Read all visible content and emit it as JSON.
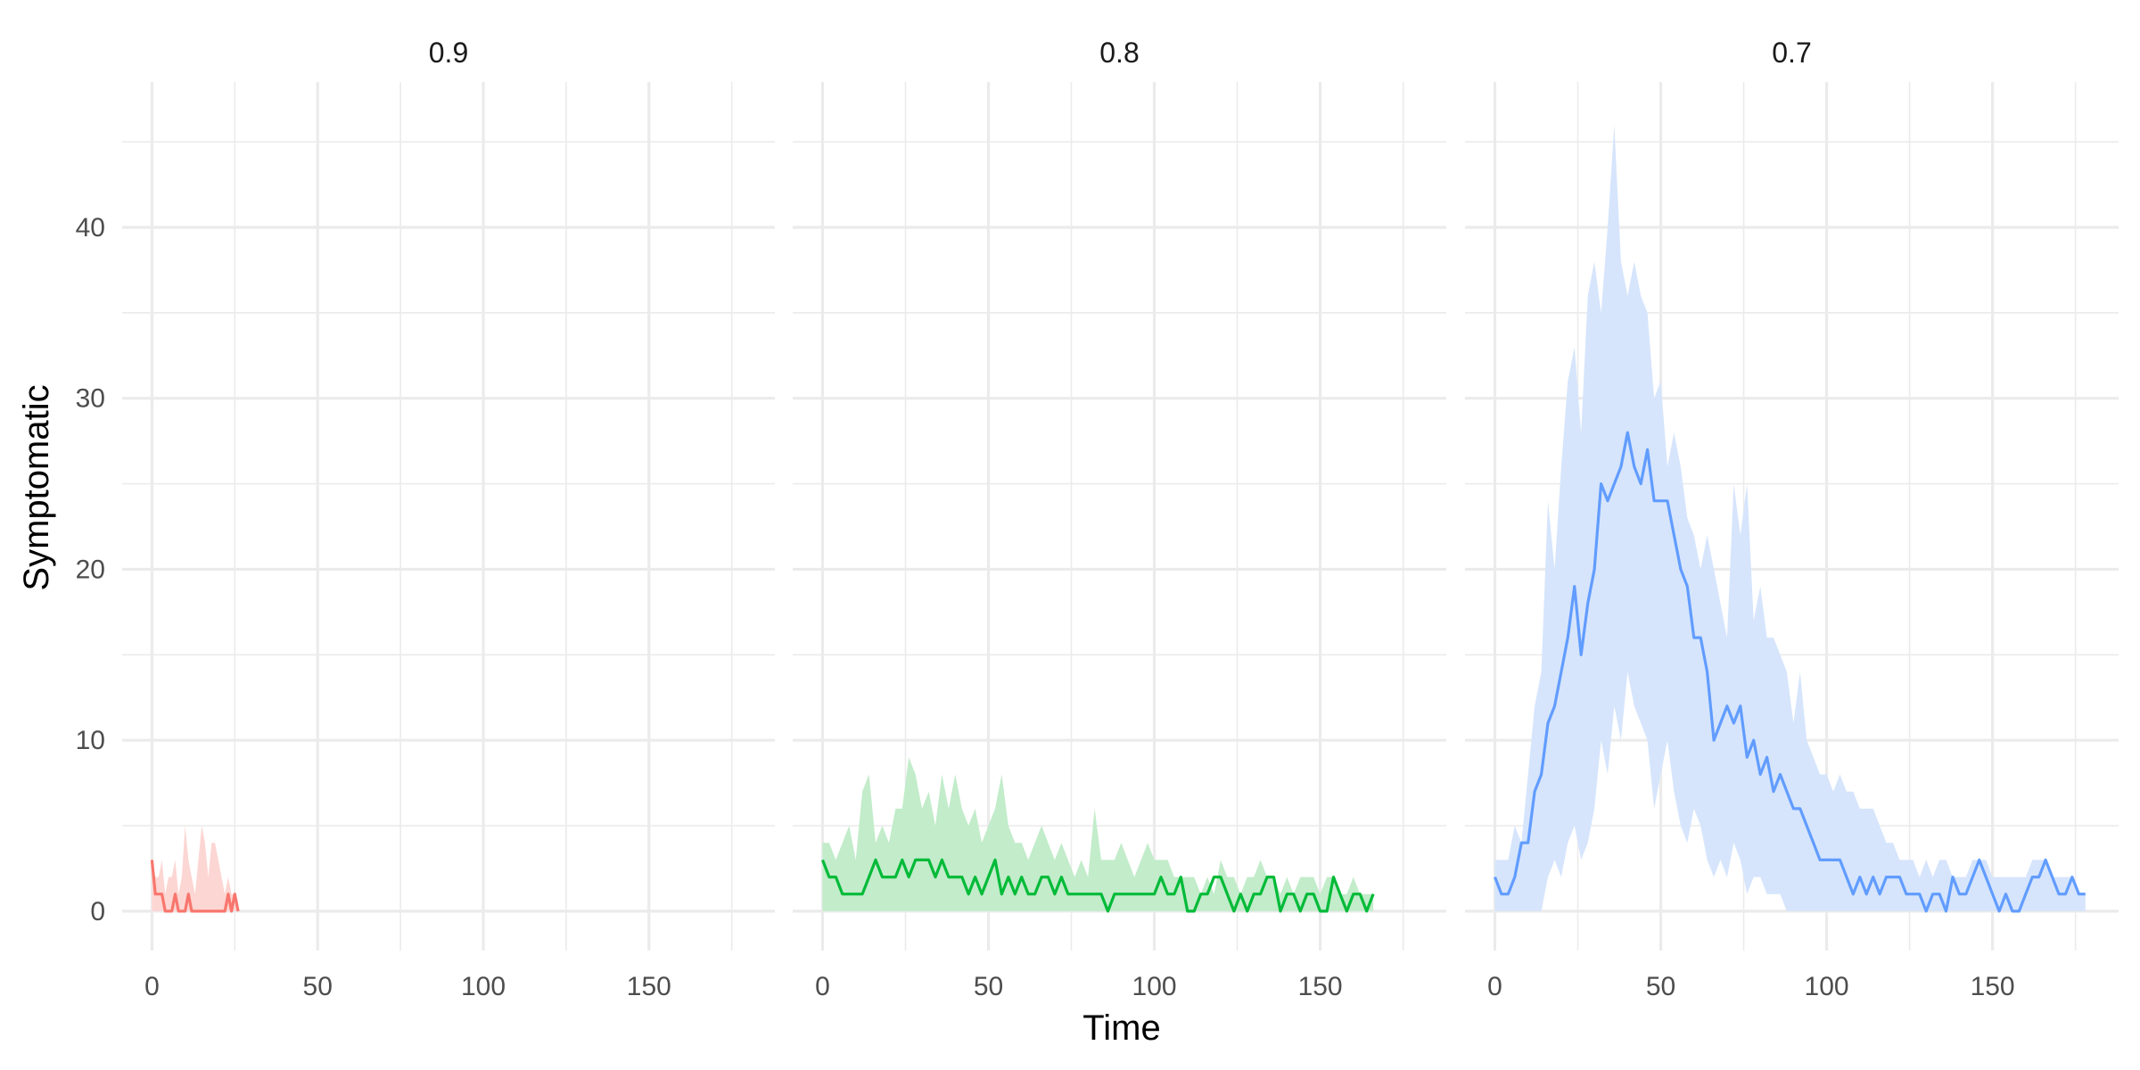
{
  "chart_data": {
    "type": "line",
    "xlabel": "Time",
    "ylabel": "Symptomatic",
    "xlim": [
      -9,
      188
    ],
    "ylim": [
      -2.3,
      48.5
    ],
    "x_ticks": [
      0,
      50,
      100,
      150
    ],
    "x_ticks_minor": [
      25,
      75,
      125,
      175
    ],
    "y_ticks": [
      0,
      10,
      20,
      30,
      40
    ],
    "y_ticks_minor": [
      5,
      15,
      25,
      35,
      45
    ],
    "grid": true,
    "legend": "none",
    "panels": [
      {
        "name": "0.9",
        "tick_labels": [
          "0",
          "50",
          "100",
          "150"
        ],
        "color": "#f8766d",
        "band_color": "#fcd6d3",
        "x": [
          0,
          1,
          2,
          3,
          4,
          5,
          6,
          7,
          8,
          9,
          10,
          11,
          12,
          13,
          14,
          15,
          16,
          17,
          18,
          19,
          20,
          21,
          22,
          23,
          24,
          25,
          26
        ],
        "median": [
          3,
          1,
          1,
          1,
          0,
          0,
          0,
          1,
          0,
          0,
          0,
          1,
          0,
          0,
          0,
          0,
          0,
          0,
          0,
          0,
          0,
          0,
          0,
          1,
          0,
          1,
          0
        ],
        "lower": [
          0,
          0,
          0,
          0,
          0,
          0,
          0,
          0,
          0,
          0,
          0,
          0,
          0,
          0,
          0,
          0,
          0,
          0,
          0,
          0,
          0,
          0,
          0,
          0,
          0,
          0,
          0
        ],
        "upper": [
          3,
          2,
          2,
          3,
          1,
          2,
          2,
          3,
          1,
          2,
          5,
          3,
          2,
          1,
          3,
          5,
          4,
          2,
          4,
          4,
          3,
          2,
          1,
          2,
          1,
          1,
          0
        ]
      },
      {
        "name": "0.8",
        "tick_labels": [
          "0",
          "50",
          "100",
          "150"
        ],
        "color": "#00ba38",
        "band_color": "#c2ecca",
        "x": [
          0,
          2,
          4,
          6,
          8,
          10,
          12,
          14,
          16,
          18,
          20,
          22,
          24,
          26,
          28,
          30,
          32,
          34,
          36,
          38,
          40,
          42,
          44,
          46,
          48,
          50,
          52,
          54,
          56,
          58,
          60,
          62,
          64,
          66,
          68,
          70,
          72,
          74,
          76,
          78,
          80,
          82,
          84,
          86,
          88,
          90,
          92,
          94,
          96,
          98,
          100,
          102,
          104,
          106,
          108,
          110,
          112,
          114,
          116,
          118,
          120,
          122,
          124,
          126,
          128,
          130,
          132,
          134,
          136,
          138,
          140,
          142,
          144,
          146,
          148,
          150,
          152,
          154,
          156,
          158,
          160,
          162,
          164,
          166
        ],
        "median": [
          3,
          2,
          2,
          1,
          1,
          1,
          1,
          2,
          3,
          2,
          2,
          2,
          3,
          2,
          3,
          3,
          3,
          2,
          3,
          2,
          2,
          2,
          1,
          2,
          1,
          2,
          3,
          1,
          2,
          1,
          2,
          1,
          1,
          2,
          2,
          1,
          2,
          1,
          1,
          1,
          1,
          1,
          1,
          0,
          1,
          1,
          1,
          1,
          1,
          1,
          1,
          2,
          1,
          1,
          2,
          0,
          0,
          1,
          1,
          2,
          2,
          1,
          0,
          1,
          0,
          1,
          1,
          2,
          2,
          0,
          1,
          1,
          0,
          1,
          1,
          0,
          0,
          2,
          1,
          0,
          1,
          1,
          0,
          1
        ],
        "lower": [
          0,
          0,
          0,
          0,
          0,
          0,
          0,
          0,
          0,
          0,
          0,
          0,
          0,
          0,
          0,
          0,
          0,
          0,
          0,
          0,
          0,
          0,
          0,
          0,
          0,
          0,
          0,
          0,
          0,
          0,
          0,
          0,
          0,
          0,
          0,
          0,
          0,
          0,
          0,
          0,
          0,
          0,
          0,
          0,
          0,
          0,
          0,
          0,
          0,
          0,
          0,
          0,
          0,
          0,
          0,
          0,
          0,
          0,
          0,
          0,
          0,
          0,
          0,
          0,
          0,
          0,
          0,
          0,
          0,
          0,
          0,
          0,
          0,
          0,
          0,
          0,
          0,
          0,
          0,
          0,
          0,
          0,
          0,
          0
        ],
        "upper": [
          4,
          4,
          3,
          4,
          5,
          3,
          7,
          8,
          4,
          5,
          4,
          6,
          6,
          9,
          8,
          6,
          7,
          5,
          8,
          6,
          8,
          6,
          5,
          6,
          4,
          5,
          6,
          8,
          5,
          4,
          4,
          3,
          4,
          5,
          4,
          3,
          4,
          3,
          2,
          3,
          2,
          6,
          3,
          3,
          3,
          4,
          3,
          2,
          3,
          4,
          3,
          3,
          3,
          2,
          2,
          2,
          2,
          1,
          2,
          1,
          3,
          2,
          2,
          1,
          2,
          2,
          3,
          2,
          2,
          1,
          2,
          1,
          2,
          2,
          2,
          1,
          2,
          2,
          1,
          1,
          2,
          1,
          1,
          1
        ]
      },
      {
        "name": "0.7",
        "tick_labels": [
          "0",
          "50",
          "100",
          "150"
        ],
        "color": "#619cff",
        "band_color": "#d6e5fc",
        "x": [
          0,
          2,
          4,
          6,
          8,
          10,
          12,
          14,
          16,
          18,
          20,
          22,
          24,
          26,
          28,
          30,
          32,
          34,
          36,
          38,
          40,
          42,
          44,
          46,
          48,
          50,
          52,
          54,
          56,
          58,
          60,
          62,
          64,
          66,
          68,
          70,
          72,
          74,
          76,
          78,
          80,
          82,
          84,
          86,
          88,
          90,
          92,
          94,
          96,
          98,
          100,
          102,
          104,
          106,
          108,
          110,
          112,
          114,
          116,
          118,
          120,
          122,
          124,
          126,
          128,
          130,
          132,
          134,
          136,
          138,
          140,
          142,
          144,
          146,
          148,
          150,
          152,
          154,
          156,
          158,
          160,
          162,
          164,
          166,
          168,
          170,
          172,
          174,
          176,
          178
        ],
        "median": [
          2,
          1,
          1,
          2,
          4,
          4,
          7,
          8,
          11,
          12,
          14,
          16,
          19,
          15,
          18,
          20,
          25,
          24,
          25,
          26,
          28,
          26,
          25,
          27,
          24,
          24,
          24,
          22,
          20,
          19,
          16,
          16,
          14,
          10,
          11,
          12,
          11,
          12,
          9,
          10,
          8,
          9,
          7,
          8,
          7,
          6,
          6,
          5,
          4,
          3,
          3,
          3,
          3,
          2,
          1,
          2,
          1,
          2,
          1,
          2,
          2,
          2,
          1,
          1,
          1,
          0,
          1,
          1,
          0,
          2,
          1,
          1,
          2,
          3,
          2,
          1,
          0,
          1,
          0,
          0,
          1,
          2,
          2,
          3,
          2,
          1,
          1,
          2,
          1,
          1
        ],
        "lower": [
          0,
          0,
          0,
          0,
          0,
          0,
          0,
          0,
          2,
          3,
          2,
          4,
          5,
          3,
          4,
          6,
          10,
          8,
          12,
          10,
          14,
          12,
          11,
          10,
          6,
          8,
          10,
          7,
          5,
          4,
          6,
          5,
          3,
          2,
          3,
          2,
          4,
          3,
          1,
          2,
          2,
          1,
          1,
          1,
          0,
          0,
          0,
          0,
          0,
          0,
          0,
          0,
          0,
          0,
          0,
          0,
          0,
          0,
          0,
          0,
          0,
          0,
          0,
          0,
          0,
          0,
          0,
          0,
          0,
          0,
          0,
          0,
          0,
          0,
          0,
          0,
          0,
          0,
          0,
          0,
          0,
          0,
          0,
          0,
          0,
          0,
          0,
          0,
          0,
          0
        ],
        "upper": [
          3,
          3,
          3,
          5,
          4,
          8,
          12,
          14,
          24,
          20,
          26,
          31,
          33,
          28,
          36,
          38,
          35,
          40,
          46,
          38,
          36,
          38,
          36,
          35,
          30,
          31,
          26,
          28,
          26,
          23,
          22,
          20,
          22,
          20,
          18,
          16,
          25,
          22,
          25,
          17,
          19,
          16,
          16,
          15,
          14,
          11,
          14,
          10,
          9,
          8,
          8,
          7,
          8,
          7,
          7,
          6,
          6,
          6,
          5,
          4,
          4,
          3,
          3,
          3,
          2,
          3,
          2,
          3,
          3,
          2,
          2,
          2,
          3,
          3,
          3,
          2,
          2,
          2,
          2,
          2,
          2,
          3,
          3,
          3,
          2,
          2,
          2,
          2,
          1,
          1
        ]
      }
    ]
  }
}
